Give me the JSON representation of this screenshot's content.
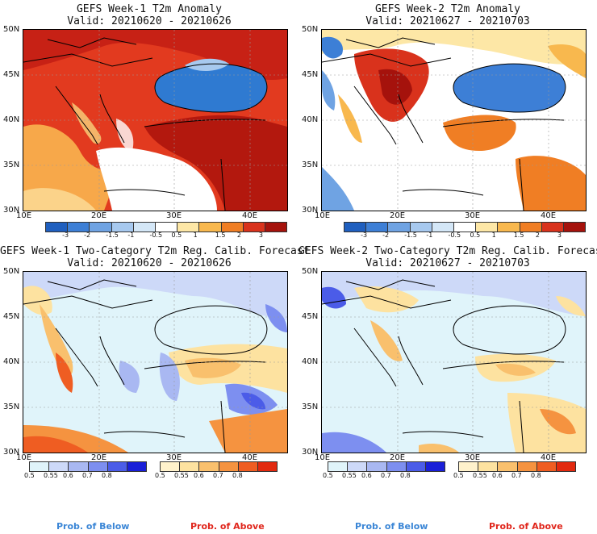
{
  "panels": [
    {
      "title": "GEFS Week-1 T2m Anomaly",
      "subtitle": "Valid: 20210620 - 20210626"
    },
    {
      "title": "GEFS Week-2 T2m Anomaly",
      "subtitle": "Valid: 20210627 - 20210703"
    },
    {
      "title": "GEFS Week-1 Two-Category T2m Reg. Calib. Forecast",
      "subtitle": "Valid: 20210620 - 20210626"
    },
    {
      "title": "GEFS Week-2 Two-Category T2m Reg. Calib. Forecast",
      "subtitle": "Valid: 20210627 - 20210703"
    }
  ],
  "lat_labels": [
    "50N",
    "45N",
    "40N",
    "35N",
    "30N"
  ],
  "lon_labels": [
    "10E",
    "20E",
    "30E",
    "40E"
  ],
  "anomaly_scale": {
    "labels": [
      "-3",
      "-2",
      "-1.5",
      "-1",
      "-0.5",
      "0.5",
      "1",
      "1.5",
      "2",
      "3"
    ],
    "colors": [
      "#1f5fbf",
      "#3d7fd6",
      "#6fa3e3",
      "#a7c9ef",
      "#d4e7f7",
      "#ffffff",
      "#fde7a6",
      "#f8b84e",
      "#f07e24",
      "#d9321c",
      "#a5120c"
    ]
  },
  "prob_below_scale": {
    "labels": [
      "0.5",
      "0.55",
      "0.6",
      "0.7",
      "0.8"
    ],
    "colors": [
      "#e0f4fa",
      "#cdd9f8",
      "#a9b8f2",
      "#7d8ff0",
      "#4b5ce8",
      "#1a1fd8"
    ]
  },
  "prob_above_scale": {
    "labels": [
      "0.5",
      "0.55",
      "0.6",
      "0.7",
      "0.8"
    ],
    "colors": [
      "#fff2cc",
      "#fde2a0",
      "#f9c06d",
      "#f59340",
      "#ef5d22",
      "#e2290f"
    ]
  },
  "legend_below": "Prob. of Below",
  "legend_above": "Prob. of Above",
  "colors": {
    "below_text": "#3b86d6",
    "above_text": "#e0261c"
  }
}
